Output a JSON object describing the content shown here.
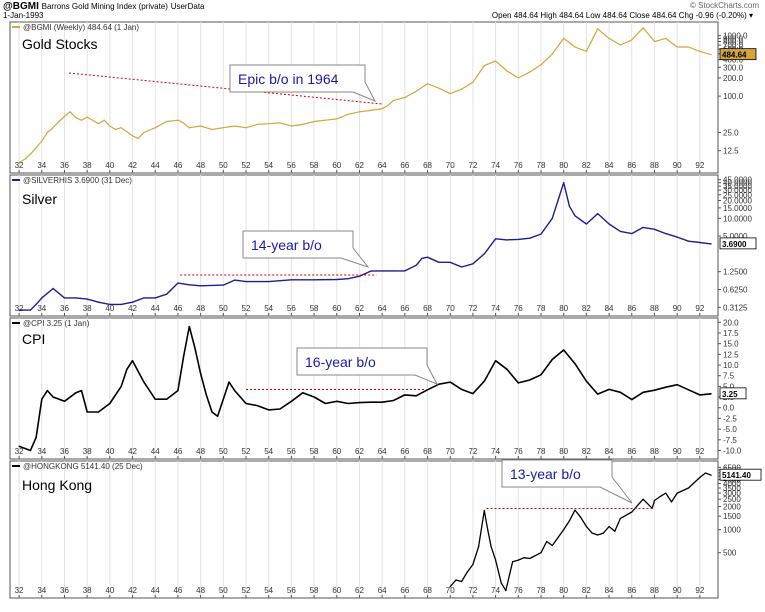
{
  "header": {
    "symbol": "@BGMI",
    "name": "Barrons Gold Mining Index (private)",
    "source": "UserData",
    "date": "1-Jan-1993",
    "brand": "© StockCharts.com",
    "quote": "Open 484.64  High 484.64  Low 484.64  Close 484.64  Chg -0.96 (-0.20%) ▾"
  },
  "x_ticks": [
    "32",
    "34",
    "36",
    "38",
    "40",
    "42",
    "44",
    "46",
    "48",
    "50",
    "52",
    "54",
    "56",
    "58",
    "60",
    "62",
    "64",
    "66",
    "68",
    "70",
    "72",
    "74",
    "76",
    "78",
    "80",
    "82",
    "84",
    "86",
    "88",
    "90",
    "92"
  ],
  "chart_data": [
    {
      "type": "line",
      "legend": "@BGMI (Weekly) 484.64 (1 Jan)",
      "title": "Gold Stocks",
      "color": "#d4a53c",
      "scale": "log",
      "y_ticks": [
        "12.5",
        "25.0",
        "100.0",
        "200.0",
        "300.0",
        "400.0",
        "500.0",
        "600.0",
        "700.0",
        "800.0",
        "900.0",
        "1000.0"
      ],
      "last_value": "484.64",
      "x": [
        1932,
        1932.5,
        1933,
        1933.5,
        1934,
        1934.5,
        1935,
        1935.5,
        1936,
        1936.5,
        1937,
        1937.5,
        1938,
        1939,
        1939.5,
        1940,
        1940.5,
        1941,
        1942,
        1942.5,
        1943,
        1944,
        1945,
        1946,
        1946.5,
        1947,
        1948,
        1949,
        1950,
        1951,
        1952,
        1953,
        1954,
        1955,
        1956,
        1957,
        1958,
        1959,
        1960,
        1961,
        1962,
        1963,
        1964,
        1964.5,
        1965,
        1966,
        1967,
        1968,
        1969,
        1970,
        1971,
        1972,
        1973,
        1974,
        1975,
        1976,
        1977,
        1978,
        1979,
        1980,
        1981,
        1982,
        1983,
        1984,
        1985,
        1986,
        1987,
        1988,
        1989,
        1990,
        1991,
        1992,
        1993
      ],
      "values": [
        8,
        9,
        11,
        14,
        18,
        25,
        30,
        38,
        46,
        55,
        44,
        40,
        45,
        35,
        40,
        32,
        28,
        30,
        22,
        20,
        25,
        30,
        38,
        40,
        36,
        30,
        32,
        28,
        30,
        32,
        30,
        34,
        35,
        36,
        32,
        34,
        38,
        40,
        42,
        50,
        55,
        58,
        62,
        70,
        85,
        95,
        120,
        160,
        135,
        110,
        130,
        170,
        320,
        380,
        260,
        200,
        250,
        330,
        500,
        900,
        650,
        550,
        1300,
        900,
        700,
        850,
        1350,
        800,
        900,
        650,
        650,
        550,
        484.64
      ]
    },
    {
      "type": "line",
      "legend": "@SILVERHIS 3.6900 (31 Dec)",
      "title": "Silver",
      "color": "#1e1e8c",
      "scale": "log",
      "y_ticks": [
        "0.3125",
        "0.6250",
        "1.2500",
        "5.0000",
        "10.0000",
        "15.0000",
        "20.0000",
        "25.0000",
        "30.0000",
        "35.0000",
        "40.0000",
        "45.0000"
      ],
      "last_value": "3.6900",
      "x": [
        1932,
        1933,
        1933.5,
        1934,
        1935,
        1936,
        1937,
        1938,
        1939,
        1940,
        1941,
        1942,
        1943,
        1944,
        1945,
        1946,
        1947,
        1948,
        1950,
        1951,
        1952,
        1954,
        1956,
        1958,
        1960,
        1961,
        1962,
        1963,
        1963.5,
        1964,
        1965,
        1966,
        1967,
        1967.5,
        1968,
        1969,
        1970,
        1971,
        1972,
        1973,
        1974,
        1975,
        1976,
        1977,
        1978,
        1979,
        1979.5,
        1980,
        1980.5,
        1981,
        1982,
        1983,
        1984,
        1985,
        1986,
        1987,
        1988,
        1989,
        1990,
        1991,
        1992,
        1993
      ],
      "values": [
        0.28,
        0.28,
        0.35,
        0.45,
        0.65,
        0.45,
        0.45,
        0.43,
        0.38,
        0.35,
        0.35,
        0.38,
        0.45,
        0.45,
        0.52,
        0.8,
        0.75,
        0.72,
        0.74,
        0.9,
        0.85,
        0.85,
        0.91,
        0.91,
        0.92,
        0.95,
        1.05,
        1.28,
        1.29,
        1.29,
        1.29,
        1.29,
        1.6,
        2.1,
        2.2,
        1.8,
        1.8,
        1.5,
        1.7,
        2.5,
        4.5,
        4.3,
        4.4,
        4.6,
        5.4,
        10,
        20,
        40,
        16,
        11,
        8,
        12,
        8,
        6,
        5.5,
        7,
        6.5,
        5.5,
        4.8,
        4.1,
        3.9,
        3.69
      ]
    },
    {
      "type": "line",
      "legend": "@CPI 3.25 (1 Jan)",
      "title": "CPI",
      "color": "#000000",
      "scale": "linear",
      "ylim": [
        -10,
        20
      ],
      "y_ticks": [
        "20.0",
        "17.5",
        "15.0",
        "12.5",
        "10.0",
        "7.5",
        "5.0",
        "2.5",
        "0.0",
        "-2.5",
        "-5.0",
        "-7.5",
        "-10.0"
      ],
      "last_value": "3.25",
      "x": [
        1932,
        1933,
        1933.5,
        1934,
        1934.5,
        1935,
        1936,
        1937,
        1937.5,
        1938,
        1939,
        1940,
        1941,
        1941.5,
        1942,
        1943,
        1944,
        1945,
        1946,
        1946.5,
        1947,
        1947.5,
        1948,
        1948.5,
        1949,
        1949.5,
        1950,
        1950.5,
        1951,
        1952,
        1953,
        1954,
        1955,
        1956,
        1957,
        1958,
        1959,
        1960,
        1961,
        1962,
        1963,
        1964,
        1965,
        1966,
        1967,
        1968,
        1969,
        1970,
        1971,
        1972,
        1973,
        1974,
        1975,
        1976,
        1977,
        1978,
        1979,
        1980,
        1981,
        1982,
        1983,
        1984,
        1985,
        1986,
        1987,
        1988,
        1989,
        1990,
        1991,
        1992,
        1993
      ],
      "values": [
        -9,
        -10,
        -7,
        2,
        4,
        2.5,
        1.5,
        3.5,
        4,
        -1,
        -1,
        1,
        5,
        9,
        11,
        6,
        2,
        2,
        4,
        12,
        19,
        14,
        8,
        3,
        -1,
        -2,
        2,
        6,
        4,
        1,
        0.5,
        -0.5,
        -0.3,
        1.5,
        3.5,
        2.5,
        1,
        1.5,
        1,
        1.2,
        1.3,
        1.3,
        1.7,
        3,
        2.8,
        4.2,
        5.5,
        6,
        4.3,
        3.3,
        6.2,
        11,
        9,
        5.8,
        6.5,
        7.7,
        11.3,
        13.5,
        10.3,
        6.2,
        3.2,
        4.3,
        3.6,
        1.9,
        3.6,
        4.1,
        4.8,
        5.4,
        4.2,
        3,
        3.25
      ]
    },
    {
      "type": "line",
      "legend": "@HONGKONG 5141.40 (25 Dec)",
      "title": "Hong Kong",
      "color": "#000000",
      "scale": "log",
      "y_ticks": [
        "500",
        "1000",
        "1500",
        "2000",
        "2500",
        "3000",
        "3500",
        "4000",
        "4500",
        "5000",
        "5500",
        "6000",
        "6500"
      ],
      "last_value": "5141.40",
      "x": [
        1970,
        1970.5,
        1971,
        1971.5,
        1972,
        1972.5,
        1973,
        1973.3,
        1973.6,
        1974,
        1974.5,
        1974.9,
        1975.5,
        1976,
        1976.5,
        1977,
        1978,
        1978.5,
        1979,
        1980,
        1980.5,
        1981,
        1981.5,
        1982,
        1982.5,
        1983,
        1983.5,
        1984,
        1984.5,
        1985,
        1986,
        1987,
        1987.8,
        1988,
        1988.5,
        1989,
        1989.5,
        1990,
        1991,
        1992,
        1992.5,
        1993
      ],
      "values": [
        180,
        220,
        210,
        280,
        350,
        600,
        1775,
        1000,
        600,
        400,
        200,
        160,
        380,
        400,
        430,
        420,
        500,
        700,
        620,
        1000,
        1300,
        1800,
        1450,
        1100,
        900,
        850,
        900,
        1100,
        950,
        1400,
        1700,
        2500,
        1900,
        2400,
        2700,
        3000,
        2300,
        3000,
        3500,
        4800,
        5500,
        5141.4
      ]
    }
  ],
  "annotations": [
    {
      "text": "Epic b/o in 1964"
    },
    {
      "text": "14-year b/o"
    },
    {
      "text": "16-year b/o"
    },
    {
      "text": "13-year b/o"
    }
  ]
}
